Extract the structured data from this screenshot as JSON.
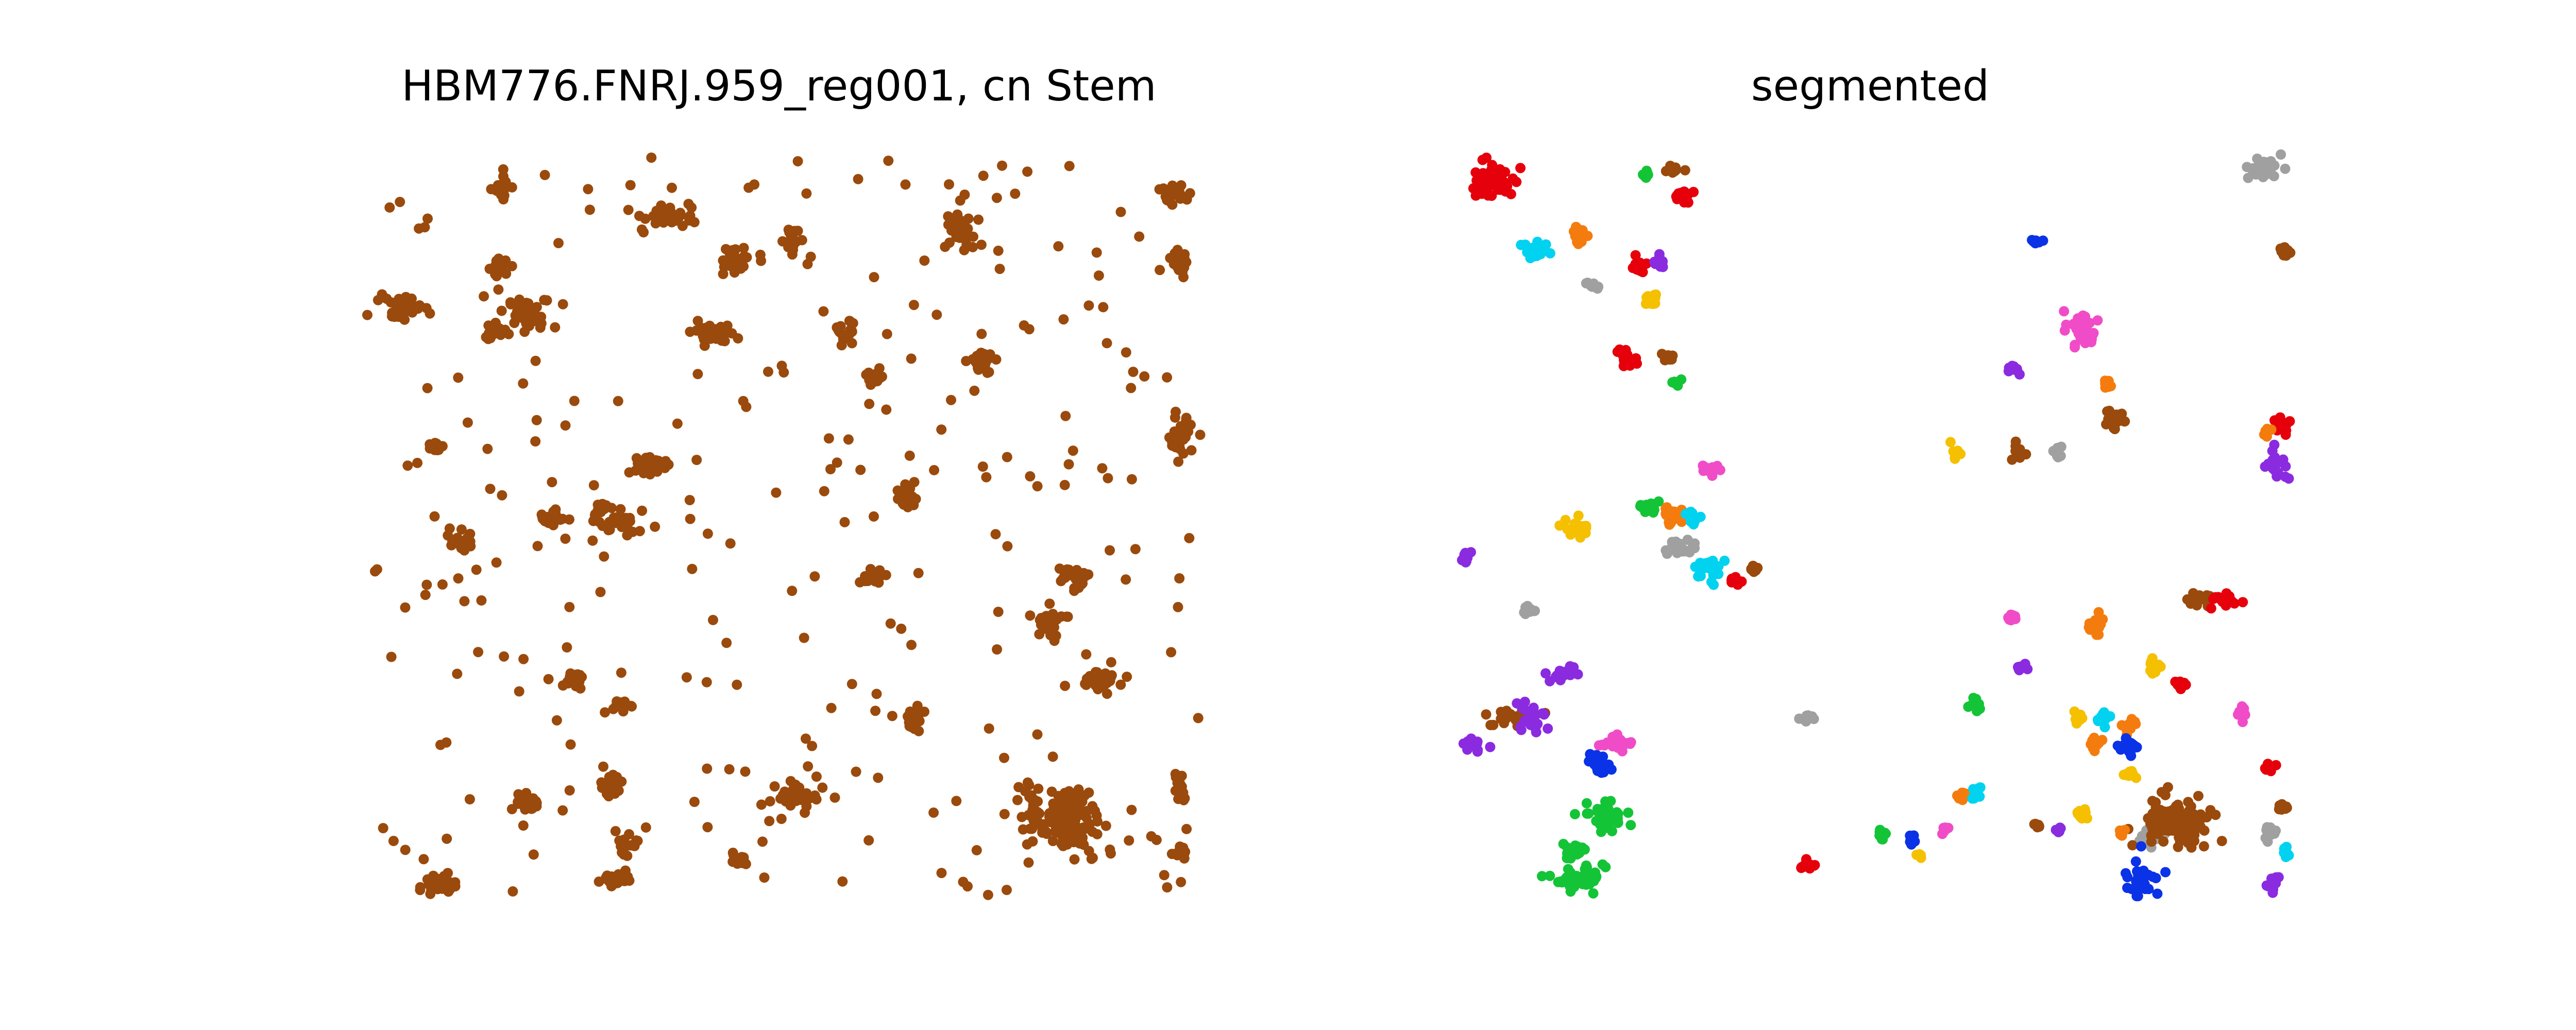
{
  "figure": {
    "background": "#ffffff"
  },
  "chart_data": [
    {
      "type": "scatter",
      "title": "HBM776.FNRJ.959_reg001, cn Stem",
      "xlabel": "",
      "ylabel": "",
      "axes_visible": false,
      "xlim": [
        0,
        1000
      ],
      "ylim": [
        0,
        1000
      ],
      "point_color": "#9a4a0c",
      "clusters": [
        {
          "cx": 90,
          "cy": 985,
          "rx": 24,
          "ry": 12,
          "n": 35
        },
        {
          "cx": 195,
          "cy": 875,
          "rx": 20,
          "ry": 12,
          "n": 26
        },
        {
          "cx": 305,
          "cy": 975,
          "rx": 18,
          "ry": 12,
          "n": 26
        },
        {
          "cx": 315,
          "cy": 930,
          "rx": 12,
          "ry": 20,
          "n": 20
        },
        {
          "cx": 300,
          "cy": 850,
          "rx": 14,
          "ry": 18,
          "n": 22
        },
        {
          "cx": 255,
          "cy": 710,
          "rx": 14,
          "ry": 14,
          "n": 20
        },
        {
          "cx": 315,
          "cy": 745,
          "rx": 14,
          "ry": 10,
          "n": 16
        },
        {
          "cx": 225,
          "cy": 490,
          "rx": 18,
          "ry": 14,
          "n": 22
        },
        {
          "cx": 305,
          "cy": 490,
          "rx": 26,
          "ry": 22,
          "n": 38
        },
        {
          "cx": 345,
          "cy": 420,
          "rx": 22,
          "ry": 16,
          "n": 30
        },
        {
          "cx": 120,
          "cy": 520,
          "rx": 18,
          "ry": 12,
          "n": 18
        },
        {
          "cx": 90,
          "cy": 395,
          "rx": 12,
          "ry": 8,
          "n": 10
        },
        {
          "cx": 55,
          "cy": 205,
          "rx": 26,
          "ry": 20,
          "n": 38
        },
        {
          "cx": 200,
          "cy": 215,
          "rx": 30,
          "ry": 26,
          "n": 40
        },
        {
          "cx": 165,
          "cy": 150,
          "rx": 10,
          "ry": 22,
          "n": 24
        },
        {
          "cx": 170,
          "cy": 45,
          "rx": 12,
          "ry": 20,
          "n": 22
        },
        {
          "cx": 160,
          "cy": 240,
          "rx": 14,
          "ry": 14,
          "n": 16
        },
        {
          "cx": 370,
          "cy": 85,
          "rx": 30,
          "ry": 18,
          "n": 30
        },
        {
          "cx": 420,
          "cy": 240,
          "rx": 30,
          "ry": 20,
          "n": 28
        },
        {
          "cx": 450,
          "cy": 140,
          "rx": 28,
          "ry": 18,
          "n": 24
        },
        {
          "cx": 515,
          "cy": 115,
          "rx": 10,
          "ry": 20,
          "n": 20
        },
        {
          "cx": 575,
          "cy": 240,
          "rx": 14,
          "ry": 14,
          "n": 18
        },
        {
          "cx": 610,
          "cy": 300,
          "rx": 12,
          "ry": 12,
          "n": 16
        },
        {
          "cx": 650,
          "cy": 460,
          "rx": 14,
          "ry": 18,
          "n": 22
        },
        {
          "cx": 610,
          "cy": 570,
          "rx": 14,
          "ry": 12,
          "n": 16
        },
        {
          "cx": 660,
          "cy": 760,
          "rx": 12,
          "ry": 18,
          "n": 24
        },
        {
          "cx": 710,
          "cy": 100,
          "rx": 20,
          "ry": 28,
          "n": 34
        },
        {
          "cx": 740,
          "cy": 280,
          "rx": 14,
          "ry": 18,
          "n": 24
        },
        {
          "cx": 800,
          "cy": 880,
          "rx": 14,
          "ry": 30,
          "n": 28
        },
        {
          "cx": 840,
          "cy": 900,
          "rx": 40,
          "ry": 42,
          "n": 120
        },
        {
          "cx": 880,
          "cy": 710,
          "rx": 28,
          "ry": 12,
          "n": 30
        },
        {
          "cx": 820,
          "cy": 630,
          "rx": 20,
          "ry": 18,
          "n": 22
        },
        {
          "cx": 850,
          "cy": 570,
          "rx": 20,
          "ry": 16,
          "n": 22
        },
        {
          "cx": 970,
          "cy": 50,
          "rx": 20,
          "ry": 12,
          "n": 24
        },
        {
          "cx": 975,
          "cy": 380,
          "rx": 12,
          "ry": 28,
          "n": 28
        },
        {
          "cx": 975,
          "cy": 140,
          "rx": 10,
          "ry": 20,
          "n": 20
        },
        {
          "cx": 975,
          "cy": 860,
          "rx": 8,
          "ry": 20,
          "n": 16
        },
        {
          "cx": 975,
          "cy": 940,
          "rx": 8,
          "ry": 12,
          "n": 10
        },
        {
          "cx": 520,
          "cy": 870,
          "rx": 40,
          "ry": 30,
          "n": 28
        },
        {
          "cx": 450,
          "cy": 950,
          "rx": 12,
          "ry": 12,
          "n": 10
        }
      ],
      "scatter_points": 260
    },
    {
      "type": "scatter",
      "title": "segmented",
      "xlabel": "",
      "ylabel": "",
      "axes_visible": false,
      "xlim": [
        0,
        1000
      ],
      "ylim": [
        0,
        1000
      ],
      "segment_colors": {
        "red": "#e6000b",
        "cyan": "#00d2f0",
        "orange": "#f47c0e",
        "gray": "#a0a0a0",
        "purple": "#8b2be0",
        "yellow": "#f5c000",
        "green": "#14c437",
        "brown": "#9a4a0c",
        "pink": "#f04cc8",
        "blue": "#0a32e6"
      },
      "segments": [
        {
          "cx": 40,
          "cy": 35,
          "rx": 22,
          "ry": 22,
          "n": 60,
          "color": "red"
        },
        {
          "cx": 95,
          "cy": 130,
          "rx": 16,
          "ry": 12,
          "n": 26,
          "color": "cyan"
        },
        {
          "cx": 145,
          "cy": 110,
          "rx": 10,
          "ry": 12,
          "n": 16,
          "color": "orange"
        },
        {
          "cx": 160,
          "cy": 175,
          "rx": 7,
          "ry": 7,
          "n": 10,
          "color": "gray"
        },
        {
          "cx": 215,
          "cy": 150,
          "rx": 10,
          "ry": 10,
          "n": 16,
          "color": "red"
        },
        {
          "cx": 240,
          "cy": 145,
          "rx": 7,
          "ry": 8,
          "n": 10,
          "color": "purple"
        },
        {
          "cx": 230,
          "cy": 195,
          "rx": 9,
          "ry": 9,
          "n": 14,
          "color": "yellow"
        },
        {
          "cx": 200,
          "cy": 275,
          "rx": 10,
          "ry": 14,
          "n": 20,
          "color": "red"
        },
        {
          "cx": 250,
          "cy": 275,
          "rx": 8,
          "ry": 7,
          "n": 10,
          "color": "brown"
        },
        {
          "cx": 260,
          "cy": 310,
          "rx": 8,
          "ry": 6,
          "n": 8,
          "color": "green"
        },
        {
          "cx": 255,
          "cy": 20,
          "rx": 10,
          "ry": 8,
          "n": 12,
          "color": "brown"
        },
        {
          "cx": 265,
          "cy": 55,
          "rx": 10,
          "ry": 12,
          "n": 16,
          "color": "red"
        },
        {
          "cx": 225,
          "cy": 25,
          "rx": 6,
          "ry": 6,
          "n": 6,
          "color": "green"
        },
        {
          "cx": 300,
          "cy": 425,
          "rx": 10,
          "ry": 7,
          "n": 12,
          "color": "pink"
        },
        {
          "cx": 225,
          "cy": 475,
          "rx": 12,
          "ry": 10,
          "n": 14,
          "color": "green"
        },
        {
          "cx": 255,
          "cy": 485,
          "rx": 12,
          "ry": 12,
          "n": 18,
          "color": "orange"
        },
        {
          "cx": 280,
          "cy": 490,
          "rx": 10,
          "ry": 10,
          "n": 12,
          "color": "cyan"
        },
        {
          "cx": 265,
          "cy": 530,
          "rx": 20,
          "ry": 10,
          "n": 24,
          "color": "gray"
        },
        {
          "cx": 300,
          "cy": 560,
          "rx": 16,
          "ry": 16,
          "n": 24,
          "color": "cyan"
        },
        {
          "cx": 145,
          "cy": 505,
          "rx": 16,
          "ry": 16,
          "n": 22,
          "color": "yellow"
        },
        {
          "cx": 330,
          "cy": 575,
          "rx": 12,
          "ry": 6,
          "n": 10,
          "color": "red"
        },
        {
          "cx": 355,
          "cy": 560,
          "rx": 8,
          "ry": 6,
          "n": 8,
          "color": "brown"
        },
        {
          "cx": 10,
          "cy": 545,
          "rx": 6,
          "ry": 10,
          "n": 10,
          "color": "purple"
        },
        {
          "cx": 85,
          "cy": 615,
          "rx": 10,
          "ry": 6,
          "n": 10,
          "color": "gray"
        },
        {
          "cx": 60,
          "cy": 760,
          "rx": 28,
          "ry": 10,
          "n": 22,
          "color": "brown"
        },
        {
          "cx": 20,
          "cy": 795,
          "rx": 18,
          "ry": 12,
          "n": 16,
          "color": "purple"
        },
        {
          "cx": 90,
          "cy": 760,
          "rx": 20,
          "ry": 20,
          "n": 24,
          "color": "purple"
        },
        {
          "cx": 125,
          "cy": 700,
          "rx": 20,
          "ry": 12,
          "n": 18,
          "color": "purple"
        },
        {
          "cx": 190,
          "cy": 795,
          "rx": 18,
          "ry": 10,
          "n": 22,
          "color": "pink"
        },
        {
          "cx": 165,
          "cy": 820,
          "rx": 14,
          "ry": 20,
          "n": 26,
          "color": "blue"
        },
        {
          "cx": 175,
          "cy": 890,
          "rx": 30,
          "ry": 20,
          "n": 36,
          "color": "green"
        },
        {
          "cx": 140,
          "cy": 975,
          "rx": 35,
          "ry": 18,
          "n": 40,
          "color": "green"
        },
        {
          "cx": 140,
          "cy": 940,
          "rx": 20,
          "ry": 10,
          "n": 20,
          "color": "green"
        },
        {
          "cx": 415,
          "cy": 760,
          "rx": 8,
          "ry": 6,
          "n": 8,
          "color": "gray"
        },
        {
          "cx": 415,
          "cy": 960,
          "rx": 8,
          "ry": 10,
          "n": 12,
          "color": "red"
        },
        {
          "cx": 505,
          "cy": 915,
          "rx": 6,
          "ry": 8,
          "n": 8,
          "color": "green"
        },
        {
          "cx": 540,
          "cy": 925,
          "rx": 8,
          "ry": 6,
          "n": 8,
          "color": "blue"
        },
        {
          "cx": 550,
          "cy": 945,
          "rx": 6,
          "ry": 6,
          "n": 6,
          "color": "yellow"
        },
        {
          "cx": 580,
          "cy": 910,
          "rx": 6,
          "ry": 6,
          "n": 6,
          "color": "pink"
        },
        {
          "cx": 600,
          "cy": 865,
          "rx": 8,
          "ry": 6,
          "n": 8,
          "color": "orange"
        },
        {
          "cx": 620,
          "cy": 860,
          "rx": 8,
          "ry": 10,
          "n": 8,
          "color": "cyan"
        },
        {
          "cx": 615,
          "cy": 740,
          "rx": 8,
          "ry": 10,
          "n": 10,
          "color": "green"
        },
        {
          "cx": 690,
          "cy": 905,
          "rx": 6,
          "ry": 6,
          "n": 6,
          "color": "brown"
        },
        {
          "cx": 715,
          "cy": 910,
          "rx": 6,
          "ry": 6,
          "n": 6,
          "color": "purple"
        },
        {
          "cx": 745,
          "cy": 895,
          "rx": 8,
          "ry": 12,
          "n": 12,
          "color": "yellow"
        },
        {
          "cx": 660,
          "cy": 625,
          "rx": 8,
          "ry": 8,
          "n": 8,
          "color": "pink"
        },
        {
          "cx": 670,
          "cy": 690,
          "rx": 8,
          "ry": 6,
          "n": 8,
          "color": "purple"
        },
        {
          "cx": 760,
          "cy": 635,
          "rx": 10,
          "ry": 18,
          "n": 18,
          "color": "orange"
        },
        {
          "cx": 740,
          "cy": 760,
          "rx": 8,
          "ry": 10,
          "n": 8,
          "color": "yellow"
        },
        {
          "cx": 770,
          "cy": 760,
          "rx": 10,
          "ry": 8,
          "n": 10,
          "color": "cyan"
        },
        {
          "cx": 760,
          "cy": 795,
          "rx": 8,
          "ry": 10,
          "n": 10,
          "color": "orange"
        },
        {
          "cx": 800,
          "cy": 770,
          "rx": 10,
          "ry": 10,
          "n": 12,
          "color": "orange"
        },
        {
          "cx": 800,
          "cy": 800,
          "rx": 10,
          "ry": 12,
          "n": 16,
          "color": "blue"
        },
        {
          "cx": 800,
          "cy": 835,
          "rx": 10,
          "ry": 6,
          "n": 10,
          "color": "yellow"
        },
        {
          "cx": 830,
          "cy": 690,
          "rx": 12,
          "ry": 10,
          "n": 14,
          "color": "yellow"
        },
        {
          "cx": 860,
          "cy": 715,
          "rx": 10,
          "ry": 8,
          "n": 10,
          "color": "red"
        },
        {
          "cx": 825,
          "cy": 920,
          "rx": 18,
          "ry": 12,
          "n": 16,
          "color": "gray"
        },
        {
          "cx": 855,
          "cy": 900,
          "rx": 40,
          "ry": 38,
          "n": 110,
          "color": "brown"
        },
        {
          "cx": 815,
          "cy": 975,
          "rx": 20,
          "ry": 26,
          "n": 30,
          "color": "blue"
        },
        {
          "cx": 790,
          "cy": 915,
          "rx": 6,
          "ry": 6,
          "n": 6,
          "color": "orange"
        },
        {
          "cx": 880,
          "cy": 600,
          "rx": 14,
          "ry": 12,
          "n": 18,
          "color": "brown"
        },
        {
          "cx": 915,
          "cy": 600,
          "rx": 16,
          "ry": 14,
          "n": 22,
          "color": "red"
        },
        {
          "cx": 935,
          "cy": 755,
          "rx": 8,
          "ry": 10,
          "n": 8,
          "color": "pink"
        },
        {
          "cx": 965,
          "cy": 830,
          "rx": 8,
          "ry": 8,
          "n": 8,
          "color": "red"
        },
        {
          "cx": 980,
          "cy": 880,
          "rx": 8,
          "ry": 10,
          "n": 8,
          "color": "brown"
        },
        {
          "cx": 965,
          "cy": 915,
          "rx": 8,
          "ry": 16,
          "n": 10,
          "color": "gray"
        },
        {
          "cx": 985,
          "cy": 940,
          "rx": 8,
          "ry": 10,
          "n": 10,
          "color": "cyan"
        },
        {
          "cx": 970,
          "cy": 985,
          "rx": 8,
          "ry": 10,
          "n": 10,
          "color": "purple"
        },
        {
          "cx": 690,
          "cy": 115,
          "rx": 8,
          "ry": 6,
          "n": 8,
          "color": "blue"
        },
        {
          "cx": 740,
          "cy": 235,
          "rx": 24,
          "ry": 24,
          "n": 30,
          "color": "pink"
        },
        {
          "cx": 775,
          "cy": 310,
          "rx": 8,
          "ry": 8,
          "n": 10,
          "color": "orange"
        },
        {
          "cx": 785,
          "cy": 355,
          "rx": 16,
          "ry": 14,
          "n": 20,
          "color": "brown"
        },
        {
          "cx": 660,
          "cy": 290,
          "rx": 8,
          "ry": 8,
          "n": 8,
          "color": "purple"
        },
        {
          "cx": 595,
          "cy": 400,
          "rx": 6,
          "ry": 10,
          "n": 8,
          "color": "yellow"
        },
        {
          "cx": 665,
          "cy": 405,
          "rx": 10,
          "ry": 14,
          "n": 12,
          "color": "brown"
        },
        {
          "cx": 715,
          "cy": 400,
          "rx": 8,
          "ry": 14,
          "n": 10,
          "color": "gray"
        },
        {
          "cx": 960,
          "cy": 20,
          "rx": 22,
          "ry": 16,
          "n": 40,
          "color": "gray"
        },
        {
          "cx": 985,
          "cy": 130,
          "rx": 8,
          "ry": 10,
          "n": 10,
          "color": "brown"
        },
        {
          "cx": 980,
          "cy": 365,
          "rx": 10,
          "ry": 10,
          "n": 14,
          "color": "red"
        },
        {
          "cx": 965,
          "cy": 375,
          "rx": 6,
          "ry": 8,
          "n": 6,
          "color": "orange"
        },
        {
          "cx": 975,
          "cy": 415,
          "rx": 14,
          "ry": 18,
          "n": 22,
          "color": "purple"
        }
      ]
    }
  ]
}
